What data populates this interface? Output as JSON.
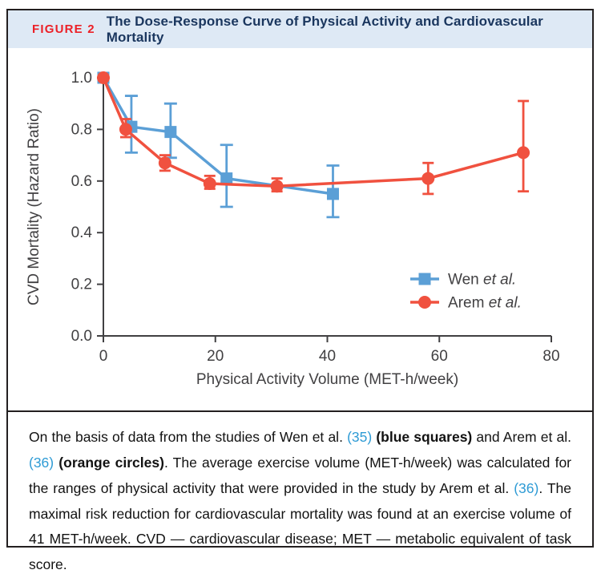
{
  "figure": {
    "label": "FIGURE 2",
    "title": "The Dose-Response Curve of Physical Activity and Cardiovascular Mortality"
  },
  "colors": {
    "header_bg": "#DEE9F5",
    "figure_label_red": "#EC2027",
    "title_navy": "#1A365E",
    "wen_blue": "#5B9FD6",
    "arem_orange": "#F0513F",
    "citation_blue": "#2E9BD5",
    "axis_gray": "#414042",
    "panel_border": "#231F20"
  },
  "chart_data": {
    "type": "line",
    "title": "",
    "xlabel": "Physical Activity Volume (MET-h/week)",
    "ylabel": "CVD Mortality (Hazard Ratio)",
    "xlim": [
      0,
      80
    ],
    "ylim": [
      0,
      1.0
    ],
    "grid": false,
    "legend_position": "lower right",
    "x_ticks": [
      {
        "v": 0,
        "label": "0"
      },
      {
        "v": 20,
        "label": "20"
      },
      {
        "v": 40,
        "label": "40"
      },
      {
        "v": 60,
        "label": "60"
      },
      {
        "v": 80,
        "label": "80"
      }
    ],
    "y_ticks": [
      {
        "v": 0.0,
        "label": "0.0"
      },
      {
        "v": 0.2,
        "label": "0.2"
      },
      {
        "v": 0.4,
        "label": "0.4"
      },
      {
        "v": 0.6,
        "label": "0.6"
      },
      {
        "v": 0.8,
        "label": "0.8"
      },
      {
        "v": 1.0,
        "label": "1.0"
      }
    ],
    "series": [
      {
        "name": "Wen ",
        "suffix": "et al.",
        "marker": "square",
        "color": "#5B9FD6",
        "cap_halfwidth": 8,
        "points": [
          {
            "x": 0,
            "y": 1.0,
            "err": null
          },
          {
            "x": 5,
            "y": 0.81,
            "err": [
              0.71,
              0.93
            ]
          },
          {
            "x": 12,
            "y": 0.79,
            "err": [
              0.69,
              0.9
            ]
          },
          {
            "x": 22,
            "y": 0.61,
            "err": [
              0.5,
              0.74
            ]
          },
          {
            "x": 41,
            "y": 0.55,
            "err": [
              0.46,
              0.66
            ]
          }
        ]
      },
      {
        "name": "Arem ",
        "suffix": "et al.",
        "marker": "circle",
        "color": "#F0513F",
        "cap_halfwidth": 7,
        "points": [
          {
            "x": 0,
            "y": 1.0,
            "err": null
          },
          {
            "x": 4,
            "y": 0.8,
            "err": [
              0.77,
              0.84
            ]
          },
          {
            "x": 11,
            "y": 0.67,
            "err": [
              0.64,
              0.7
            ]
          },
          {
            "x": 19,
            "y": 0.59,
            "err": [
              0.57,
              0.62
            ]
          },
          {
            "x": 31,
            "y": 0.58,
            "err": [
              0.56,
              0.61
            ]
          },
          {
            "x": 58,
            "y": 0.61,
            "err": [
              0.55,
              0.67
            ]
          },
          {
            "x": 75,
            "y": 0.71,
            "err": [
              0.56,
              0.91
            ]
          }
        ]
      }
    ]
  },
  "caption": {
    "segments": [
      {
        "t": "On the basis of data from the studies of Wen et al. ",
        "s": "n"
      },
      {
        "t": "(35)",
        "s": "r"
      },
      {
        "t": " ",
        "s": "n"
      },
      {
        "t": "(blue squares)",
        "s": "b"
      },
      {
        "t": " and Arem et al. ",
        "s": "n"
      },
      {
        "t": "(36)",
        "s": "r"
      },
      {
        "t": " ",
        "s": "n"
      },
      {
        "t": "(orange circles)",
        "s": "b"
      },
      {
        "t": ". The average exercise volume (MET-h/week) was calculated for the ranges of physical activity that were provided in the study by Arem et al. ",
        "s": "n"
      },
      {
        "t": "(36)",
        "s": "r"
      },
      {
        "t": ". The maximal risk reduction for cardiovascular mortality was found at an exercise volume of 41 MET-h/week. CVD — cardiovascular disease; MET — metabolic equivalent of task score.",
        "s": "n"
      }
    ]
  }
}
